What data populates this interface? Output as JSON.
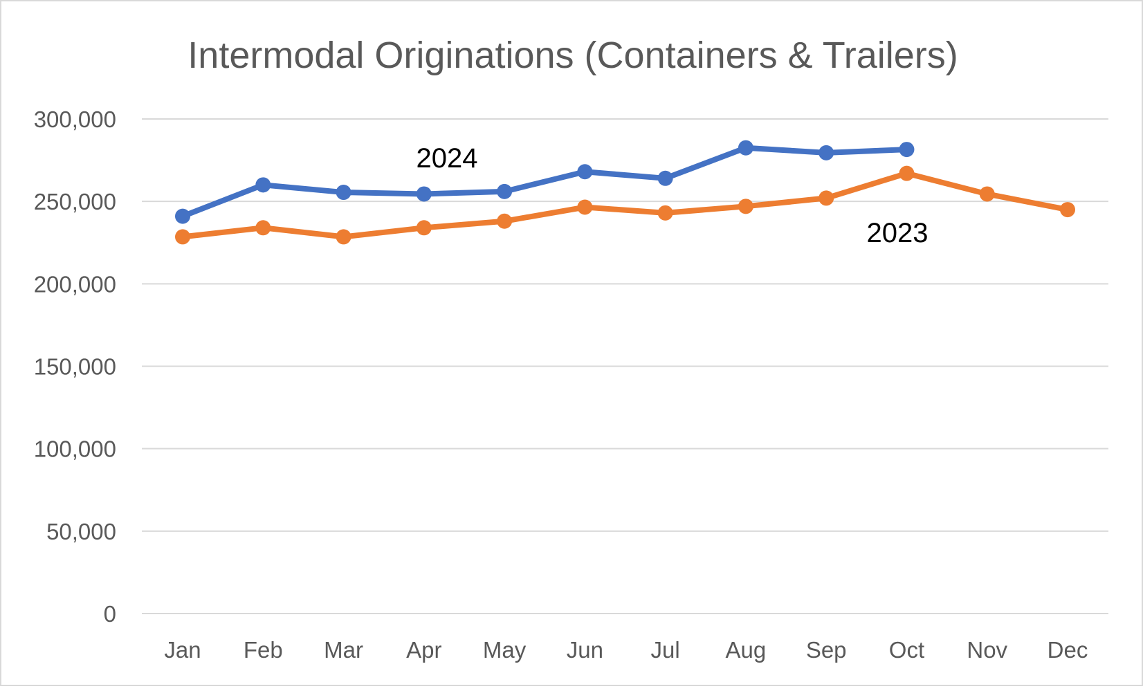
{
  "chart_data": {
    "type": "line",
    "title": "Intermodal Originations (Containers & Trailers)",
    "xlabel": "",
    "ylabel": "",
    "categories": [
      "Jan",
      "Feb",
      "Mar",
      "Apr",
      "May",
      "Jun",
      "Jul",
      "Aug",
      "Sep",
      "Oct",
      "Nov",
      "Dec"
    ],
    "ylim": [
      0,
      300000
    ],
    "yticks": [
      0,
      50000,
      100000,
      150000,
      200000,
      250000,
      300000
    ],
    "ytick_labels": [
      "0",
      "50,000",
      "100,000",
      "150,000",
      "200,000",
      "250,000",
      "300,000"
    ],
    "grid": true,
    "legend": "none (inline series labels)",
    "series": [
      {
        "name": "2024",
        "color": "#4472C4",
        "values": [
          241000,
          260000,
          255500,
          254500,
          256000,
          268000,
          264000,
          282500,
          279500,
          281500,
          null,
          null
        ]
      },
      {
        "name": "2023",
        "color": "#ED7D31",
        "values": [
          228500,
          234000,
          228500,
          234000,
          238000,
          246500,
          243000,
          247000,
          252000,
          267000,
          254500,
          245000
        ]
      }
    ]
  }
}
